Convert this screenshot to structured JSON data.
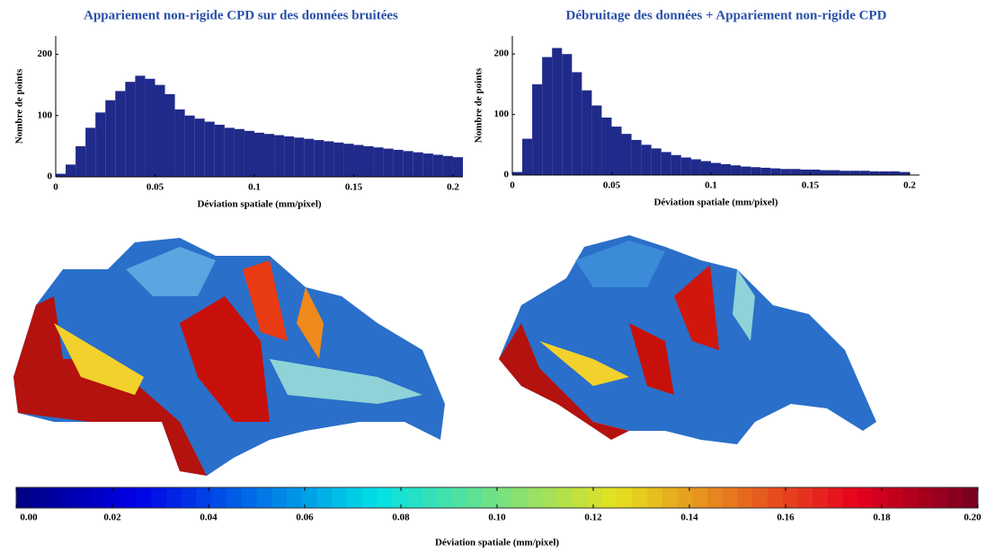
{
  "chart_data": [
    {
      "type": "histogram",
      "title": "Appariement non-rigide CPD sur des données bruitées",
      "xlabel": "Déviation spatiale (mm/pixel)",
      "ylabel": "Nombre de points",
      "color": "#1f2a8a",
      "bins": [
        0,
        0.005,
        0.01,
        0.015,
        0.02,
        0.025,
        0.03,
        0.035,
        0.04,
        0.045,
        0.05,
        0.055,
        0.06,
        0.065,
        0.07,
        0.075,
        0.08,
        0.085,
        0.09,
        0.095,
        0.1,
        0.105,
        0.11,
        0.115,
        0.12,
        0.125,
        0.13,
        0.135,
        0.14,
        0.145,
        0.15,
        0.155,
        0.16,
        0.165,
        0.17,
        0.175,
        0.18,
        0.185,
        0.19,
        0.195,
        0.2,
        0.205
      ],
      "values": [
        5,
        20,
        50,
        80,
        105,
        125,
        140,
        155,
        165,
        160,
        150,
        135,
        110,
        100,
        95,
        90,
        85,
        80,
        78,
        75,
        72,
        70,
        68,
        66,
        64,
        62,
        60,
        58,
        56,
        54,
        52,
        50,
        48,
        46,
        44,
        42,
        40,
        38,
        36,
        34,
        32
      ],
      "xlim": [
        0,
        0.205
      ],
      "xticks": [
        0,
        0.05,
        0.1,
        0.15,
        0.2
      ],
      "ylim": [
        0,
        230
      ],
      "yticks": [
        0,
        100,
        200
      ]
    },
    {
      "type": "histogram",
      "title": "Débruitage des données + Appariement non-rigide CPD",
      "xlabel": "Déviation spatiale (mm/pixel)",
      "ylabel": "Nombre de points",
      "color": "#1f2a8a",
      "bins": [
        0,
        0.005,
        0.01,
        0.015,
        0.02,
        0.025,
        0.03,
        0.035,
        0.04,
        0.045,
        0.05,
        0.055,
        0.06,
        0.065,
        0.07,
        0.075,
        0.08,
        0.085,
        0.09,
        0.095,
        0.1,
        0.105,
        0.11,
        0.115,
        0.12,
        0.125,
        0.13,
        0.135,
        0.14,
        0.145,
        0.15,
        0.155,
        0.16,
        0.165,
        0.17,
        0.175,
        0.18,
        0.185,
        0.19,
        0.195,
        0.2
      ],
      "values": [
        5,
        60,
        150,
        195,
        210,
        200,
        170,
        140,
        115,
        95,
        80,
        68,
        58,
        50,
        44,
        38,
        33,
        29,
        26,
        23,
        20,
        18,
        16,
        14,
        13,
        12,
        11,
        10,
        10,
        9,
        9,
        8,
        8,
        7,
        7,
        7,
        6,
        6,
        6,
        5
      ],
      "xlim": [
        0,
        0.205
      ],
      "xticks": [
        0,
        0.05,
        0.1,
        0.15,
        0.2
      ],
      "ylim": [
        0,
        230
      ],
      "yticks": [
        0,
        100,
        200
      ]
    },
    {
      "type": "colorbar",
      "xlabel": "Déviation spatiale (mm/pixel)",
      "xlim": [
        0,
        0.2
      ],
      "xticks": [
        {
          "value": 0,
          "label": "0.00"
        },
        {
          "value": 0.02,
          "label": "0.02"
        },
        {
          "value": 0.04,
          "label": "0.04"
        },
        {
          "value": 0.06,
          "label": "0.06"
        },
        {
          "value": 0.08,
          "label": "0.08"
        },
        {
          "value": 0.1,
          "label": "0.10"
        },
        {
          "value": 0.12,
          "label": "0.12"
        },
        {
          "value": 0.14,
          "label": "0.14"
        },
        {
          "value": 0.16,
          "label": "0.16"
        },
        {
          "value": 0.18,
          "label": "0.18"
        },
        {
          "value": 0.2,
          "label": "0.20"
        }
      ]
    }
  ]
}
